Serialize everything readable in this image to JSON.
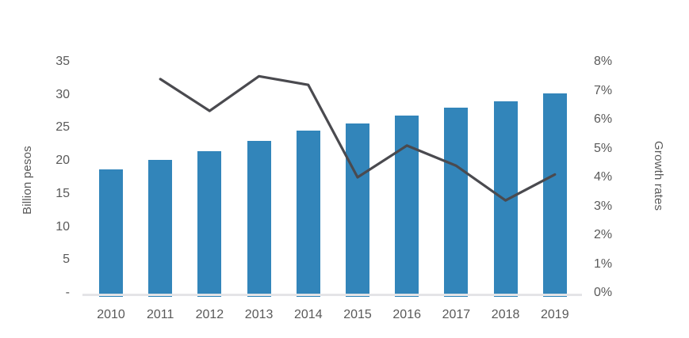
{
  "chart_data": {
    "type": "combo",
    "title": "",
    "categories": [
      "2010",
      "2011",
      "2012",
      "2013",
      "2014",
      "2015",
      "2016",
      "2017",
      "2018",
      "2019"
    ],
    "series": [
      {
        "name": "Billion pesos",
        "type": "bar",
        "axis": "left",
        "color": "#3285ba",
        "values": [
          18.7,
          20.1,
          21.4,
          23.0,
          24.6,
          25.6,
          26.9,
          28.1,
          29.0,
          30.2
        ]
      },
      {
        "name": "Growth rates",
        "type": "line",
        "axis": "right",
        "color": "#4a4a4f",
        "values": [
          null,
          7.4,
          6.3,
          7.5,
          7.2,
          4.0,
          5.1,
          4.4,
          3.2,
          4.1
        ]
      }
    ],
    "left_axis": {
      "label": "Billion pesos",
      "tick_labels": [
        "35",
        "30",
        "25",
        "20",
        "15",
        "10",
        "5",
        "-"
      ],
      "tick_values": [
        35,
        30,
        25,
        20,
        15,
        10,
        5,
        0
      ],
      "min": 0,
      "max": 35
    },
    "right_axis": {
      "label": "Growth rates",
      "tick_labels": [
        "8%",
        "7%",
        "6%",
        "5%",
        "4%",
        "3%",
        "2%",
        "1%",
        "0%"
      ],
      "tick_values": [
        8,
        7,
        6,
        5,
        4,
        3,
        2,
        1,
        0
      ],
      "min": 0,
      "max": 8
    },
    "grid": false,
    "legend": "none",
    "colors": {
      "bar": "#3285ba",
      "line": "#4a4a4f",
      "axis_text": "#595959",
      "baseline": "#e4e4e7",
      "background": "#ffffff"
    }
  }
}
